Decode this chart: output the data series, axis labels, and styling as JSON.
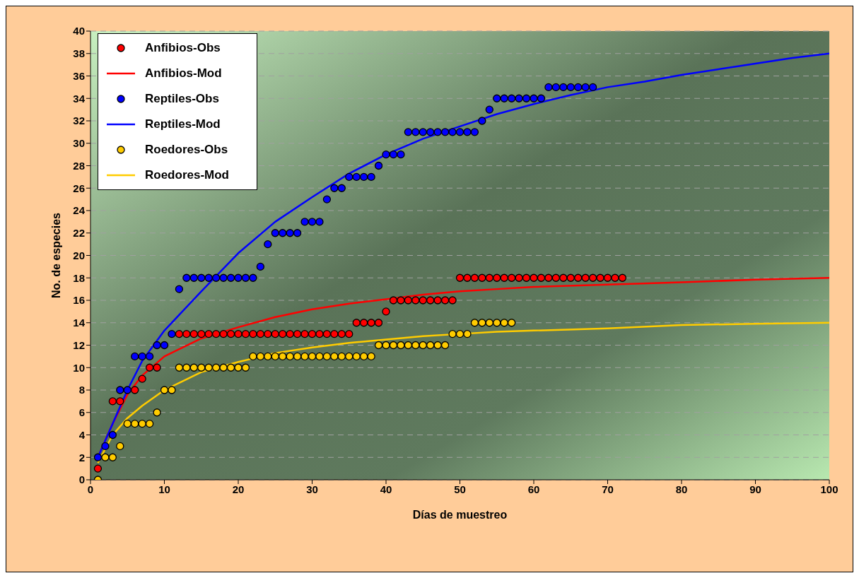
{
  "chart_data": {
    "type": "scatter",
    "xlabel": "Días de muestreo",
    "ylabel": "No. de especies",
    "xlim": [
      0,
      100
    ],
    "ylim": [
      0,
      40
    ],
    "xticks": [
      0,
      10,
      20,
      30,
      40,
      50,
      60,
      70,
      80,
      90,
      100
    ],
    "yticks": [
      0,
      2,
      4,
      6,
      8,
      10,
      12,
      14,
      16,
      18,
      20,
      22,
      24,
      26,
      28,
      30,
      32,
      34,
      36,
      38,
      40
    ],
    "grid": "y",
    "legend": "top left",
    "series": [
      {
        "name": "Anfibios-Obs",
        "marker": "circle",
        "color": "#ff0000",
        "x": [
          1,
          2,
          3,
          4,
          5,
          6,
          7,
          8,
          9,
          10,
          11,
          12,
          13,
          14,
          15,
          16,
          17,
          18,
          19,
          20,
          21,
          22,
          23,
          24,
          25,
          26,
          27,
          28,
          29,
          30,
          31,
          32,
          33,
          34,
          35,
          36,
          37,
          38,
          39,
          40,
          41,
          42,
          43,
          44,
          45,
          46,
          47,
          48,
          49,
          50,
          51,
          52,
          53,
          54,
          55,
          56,
          57,
          58,
          59,
          60,
          61,
          62,
          63,
          64,
          65,
          66,
          67,
          68,
          69,
          70,
          71,
          72
        ],
        "values": [
          1,
          null,
          7,
          7,
          null,
          8,
          9,
          10,
          10,
          null,
          null,
          13,
          13,
          13,
          13,
          13,
          13,
          13,
          13,
          13,
          13,
          13,
          13,
          13,
          13,
          13,
          13,
          13,
          13,
          13,
          13,
          13,
          13,
          13,
          13,
          14,
          14,
          14,
          14,
          15,
          16,
          16,
          16,
          16,
          16,
          16,
          16,
          16,
          16,
          18,
          18,
          18,
          18,
          18,
          18,
          18,
          18,
          18,
          18,
          18,
          18,
          18,
          18,
          18,
          18,
          18,
          18,
          18,
          18,
          18,
          18,
          18
        ]
      },
      {
        "name": "Anfibios-Mod",
        "type": "line",
        "marker": "none",
        "color": "#ff0000",
        "x": [
          1,
          3,
          5,
          7,
          10,
          15,
          20,
          25,
          30,
          35,
          40,
          45,
          50,
          55,
          60,
          70,
          80,
          90,
          100
        ],
        "values": [
          2,
          5,
          7.6,
          9.3,
          11,
          12.6,
          13.6,
          14.5,
          15.2,
          15.7,
          16.1,
          16.5,
          16.8,
          17,
          17.2,
          17.4,
          17.6,
          17.85,
          18
        ]
      },
      {
        "name": "Reptiles-Obs",
        "marker": "circle",
        "color": "#0000ff",
        "x": [
          1,
          2,
          3,
          4,
          5,
          6,
          7,
          8,
          9,
          10,
          11,
          12,
          13,
          14,
          15,
          16,
          17,
          18,
          19,
          20,
          21,
          22,
          23,
          24,
          25,
          26,
          27,
          28,
          29,
          30,
          31,
          32,
          33,
          34,
          35,
          36,
          37,
          38,
          39,
          40,
          41,
          42,
          43,
          44,
          45,
          46,
          47,
          48,
          49,
          50,
          51,
          52,
          53,
          54,
          55,
          56,
          57,
          58,
          59,
          60,
          61,
          62,
          63,
          64,
          65,
          66,
          67,
          68
        ],
        "values": [
          2,
          3,
          4,
          8,
          8,
          11,
          11,
          11,
          12,
          12,
          13,
          17,
          18,
          18,
          18,
          18,
          18,
          18,
          18,
          18,
          18,
          18,
          19,
          21,
          22,
          22,
          22,
          22,
          23,
          23,
          23,
          25,
          26,
          26,
          27,
          27,
          27,
          27,
          28,
          29,
          29,
          29,
          31,
          31,
          31,
          31,
          31,
          31,
          31,
          31,
          31,
          31,
          32,
          33,
          34,
          34,
          34,
          34,
          34,
          34,
          34,
          35,
          35,
          35,
          35,
          35,
          35,
          35
        ]
      },
      {
        "name": "Reptiles-Mod",
        "type": "line",
        "marker": "none",
        "color": "#0000ff",
        "x": [
          1,
          3,
          5,
          7,
          10,
          15,
          20,
          25,
          30,
          35,
          40,
          45,
          50,
          55,
          60,
          65,
          70,
          75,
          80,
          90,
          95,
          100
        ],
        "values": [
          2,
          5,
          8,
          10.6,
          13.3,
          16.8,
          20.2,
          23,
          25.2,
          27.3,
          29,
          30.4,
          31.5,
          32.6,
          33.5,
          34.3,
          35,
          35.5,
          36.1,
          37.1,
          37.6,
          38
        ]
      },
      {
        "name": "Roedores-Obs",
        "marker": "circle",
        "color": "#ffcc00",
        "x": [
          1,
          2,
          3,
          4,
          5,
          6,
          7,
          8,
          9,
          10,
          11,
          12,
          13,
          14,
          15,
          16,
          17,
          18,
          19,
          20,
          21,
          22,
          23,
          24,
          25,
          26,
          27,
          28,
          29,
          30,
          31,
          32,
          33,
          34,
          35,
          36,
          37,
          38,
          39,
          40,
          41,
          42,
          43,
          44,
          45,
          46,
          47,
          48,
          49,
          50,
          51,
          52,
          53,
          54,
          55,
          56,
          57
        ],
        "values": [
          0,
          2,
          2,
          3,
          5,
          5,
          5,
          5,
          6,
          8,
          8,
          10,
          10,
          10,
          10,
          10,
          10,
          10,
          10,
          10,
          10,
          11,
          11,
          11,
          11,
          11,
          11,
          11,
          11,
          11,
          11,
          11,
          11,
          11,
          11,
          11,
          11,
          11,
          12,
          12,
          12,
          12,
          12,
          12,
          12,
          12,
          12,
          12,
          13,
          13,
          13,
          14,
          14,
          14,
          14,
          14,
          14
        ]
      },
      {
        "name": "Roedores-Mod",
        "type": "line",
        "marker": "none",
        "color": "#ffcc00",
        "x": [
          1,
          3,
          5,
          7,
          10,
          15,
          20,
          25,
          30,
          35,
          40,
          45,
          50,
          55,
          60,
          70,
          80,
          90,
          100
        ],
        "values": [
          1.5,
          4,
          5.5,
          6.6,
          8,
          9.6,
          10.5,
          11.3,
          11.8,
          12.2,
          12.5,
          12.8,
          13,
          13.2,
          13.3,
          13.5,
          13.8,
          13.9,
          14
        ]
      }
    ]
  }
}
